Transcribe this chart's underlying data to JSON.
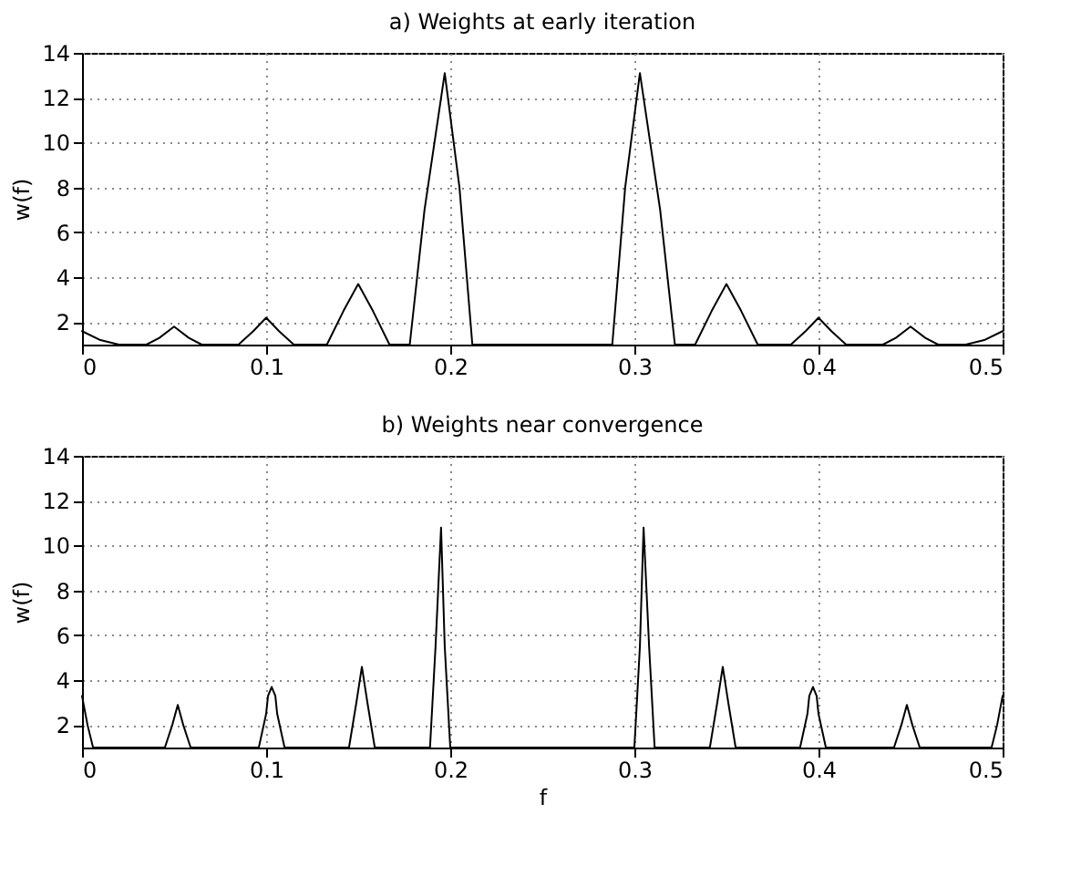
{
  "chart_data": [
    {
      "type": "line",
      "title": "a) Weights at early iteration",
      "ylabel": "w(f)",
      "color": "#000000",
      "xlim": [
        0,
        0.5
      ],
      "ylim": [
        1,
        14
      ],
      "xticks": [
        0,
        0.1,
        0.2,
        0.3,
        0.4,
        0.5
      ],
      "yticks": [
        2,
        4,
        6,
        8,
        10,
        12,
        14
      ],
      "grid": true,
      "x": [
        0,
        0.01,
        0.02,
        0.035,
        0.042,
        0.05,
        0.058,
        0.065,
        0.085,
        0.093,
        0.1,
        0.107,
        0.115,
        0.133,
        0.142,
        0.15,
        0.158,
        0.167,
        0.178,
        0.186,
        0.197,
        0.205,
        0.212,
        0.288,
        0.295,
        0.303,
        0.314,
        0.322,
        0.333,
        0.342,
        0.35,
        0.358,
        0.367,
        0.385,
        0.393,
        0.4,
        0.407,
        0.415,
        0.435,
        0.442,
        0.45,
        0.458,
        0.465,
        0.48,
        0.49,
        0.5
      ],
      "values": [
        1.6,
        1.2,
        1.0,
        1.0,
        1.3,
        1.8,
        1.3,
        1.0,
        1.0,
        1.6,
        2.2,
        1.6,
        1.0,
        1.0,
        2.5,
        3.7,
        2.5,
        1.0,
        1.0,
        7.0,
        13.1,
        8.0,
        1.0,
        1.0,
        8.0,
        13.1,
        7.0,
        1.0,
        1.0,
        2.5,
        3.7,
        2.5,
        1.0,
        1.0,
        1.6,
        2.2,
        1.6,
        1.0,
        1.0,
        1.3,
        1.8,
        1.3,
        1.0,
        1.0,
        1.2,
        1.6
      ]
    },
    {
      "type": "line",
      "title": "b) Weights near convergence",
      "xlabel": "f",
      "ylabel": "w(f)",
      "color": "#000000",
      "xlim": [
        0,
        0.5
      ],
      "ylim": [
        1,
        14
      ],
      "xticks": [
        0,
        0.1,
        0.2,
        0.3,
        0.4,
        0.5
      ],
      "yticks": [
        2,
        4,
        6,
        8,
        10,
        12,
        14
      ],
      "grid": true,
      "x": [
        0,
        0.003,
        0.006,
        0.045,
        0.049,
        0.052,
        0.055,
        0.059,
        0.096,
        0.1,
        0.101,
        0.103,
        0.105,
        0.106,
        0.11,
        0.145,
        0.149,
        0.152,
        0.155,
        0.159,
        0.189,
        0.192,
        0.195,
        0.197,
        0.2,
        0.3,
        0.303,
        0.305,
        0.308,
        0.311,
        0.341,
        0.345,
        0.348,
        0.351,
        0.355,
        0.39,
        0.394,
        0.395,
        0.397,
        0.399,
        0.4,
        0.404,
        0.441,
        0.445,
        0.448,
        0.451,
        0.455,
        0.494,
        0.497,
        0.5
      ],
      "values": [
        3.3,
        2.0,
        1.0,
        1.0,
        2.0,
        2.9,
        2.0,
        1.0,
        1.0,
        2.5,
        3.3,
        3.7,
        3.3,
        2.5,
        1.0,
        1.0,
        3.0,
        4.6,
        3.0,
        1.0,
        1.0,
        5.5,
        10.8,
        5.5,
        1.0,
        1.0,
        5.5,
        10.8,
        5.5,
        1.0,
        1.0,
        3.0,
        4.6,
        3.0,
        1.0,
        1.0,
        2.5,
        3.3,
        3.7,
        3.3,
        2.5,
        1.0,
        1.0,
        2.0,
        2.9,
        2.0,
        1.0,
        1.0,
        2.0,
        3.3
      ]
    }
  ]
}
